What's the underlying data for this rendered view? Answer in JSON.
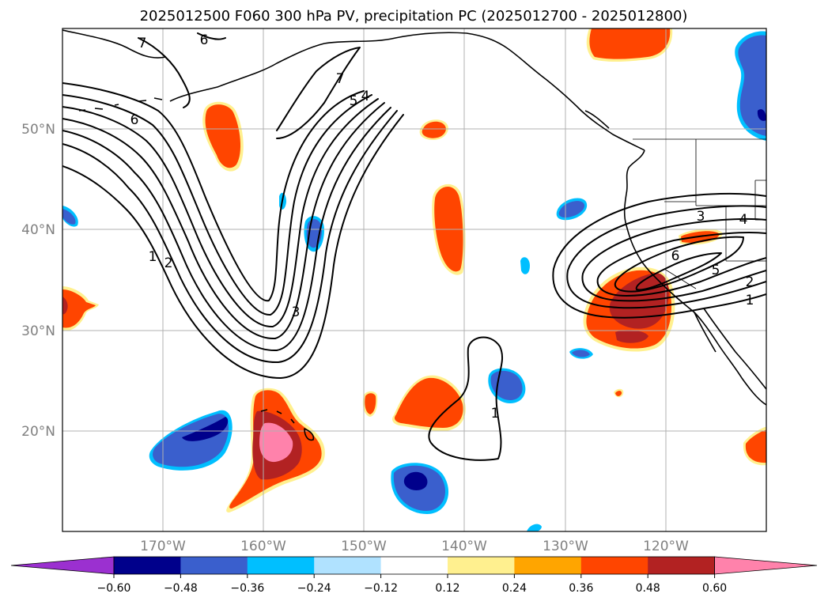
{
  "title": "2025012500 F060 300 hPa PV, precipitation PC (2025012700 - 2025012800)",
  "axes": {
    "lat_labels": [
      "50°N",
      "40°N",
      "30°N",
      "20°N"
    ],
    "lon_labels": [
      "170°W",
      "160°W",
      "150°W",
      "140°W",
      "130°W",
      "120°W"
    ]
  },
  "contour_labels": [
    "7",
    "6",
    "6",
    "5",
    "4",
    "7",
    "1",
    "2",
    "3",
    "1",
    "3",
    "4",
    "6",
    "5",
    "2",
    "1"
  ],
  "colorbar": {
    "colors": [
      "#9b30d0",
      "#00008b",
      "#3a5fcd",
      "#00bfff",
      "#b0e2ff",
      "#ffffff",
      "#fff08f",
      "#ffa500",
      "#ff4500",
      "#b22222",
      "#ff82ab"
    ],
    "ticks": [
      "−0.60",
      "−0.48",
      "−0.36",
      "−0.24",
      "−0.12",
      "0.12",
      "0.24",
      "0.36",
      "0.48",
      "0.60"
    ]
  }
}
